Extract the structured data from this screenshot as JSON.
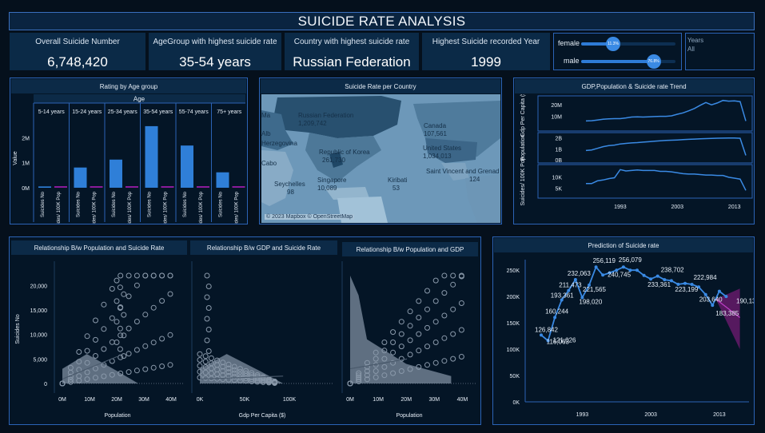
{
  "title": "SUICIDE RATE ANALYSIS",
  "kpis": [
    {
      "label": "Overall Suicide Number",
      "value": "6,748,420"
    },
    {
      "label": "AgeGroup with highest suicide rate",
      "value": "35-54 years"
    },
    {
      "label": "Country with highest suicide rate",
      "value": "Russian Federation"
    },
    {
      "label": "Highest Suicide recorded Year",
      "value": "1999"
    }
  ],
  "gender": {
    "female_label": "female",
    "female_value": "11.3%",
    "male_label": "male",
    "male_value": "76.8%",
    "female_fraction": 0.113,
    "male_fraction": 0.768
  },
  "years_filter": {
    "label": "Years",
    "value": "All"
  },
  "age_chart": {
    "title": "Rating by Age group",
    "header": "Age",
    "ylabel": "Value",
    "yticks": [
      "2M",
      "1M",
      "0M"
    ],
    "groups": [
      "5-14 years",
      "15-24 years",
      "25-34 years",
      "35-54 years",
      "55-74 years",
      "75+ years"
    ],
    "bar_labels": [
      "Suicides No",
      "Suicides/ 100K Pop"
    ],
    "suicides_no": [
      52000,
      808000,
      1124000,
      2460000,
      1686000,
      616000
    ],
    "ymax": 3000000
  },
  "map": {
    "title": "Suicide Rate per Country",
    "labels": [
      {
        "name": "Russian Federation",
        "value": "1,209,742"
      },
      {
        "name": "Canada",
        "value": "107,561"
      },
      {
        "name": "Herzegovina",
        "value": ""
      },
      {
        "name": "Republic of Korea",
        "value": "261,730"
      },
      {
        "name": "United States",
        "value": "1,034,013"
      },
      {
        "name": "Seychelles",
        "value": "98"
      },
      {
        "name": "Singapore",
        "value": "10,089"
      },
      {
        "name": "Kiribati",
        "value": "53"
      },
      {
        "name": "Saint Vincent and Grenad",
        "value": "124"
      },
      {
        "name": "Cabo",
        "value": ""
      },
      {
        "name": "Alb",
        "value": ""
      },
      {
        "name": "Ma",
        "value": ""
      }
    ],
    "attribution": "© 2023 Mapbox © OpenStreetMap"
  },
  "trend": {
    "title": "GDP,Population & Suicide rate Trend",
    "ylabels": [
      "Gdp Per Capita ($)",
      "Population",
      "Suicides/ 100K Pop"
    ],
    "ticks1": [
      "20M",
      "10M"
    ],
    "ticks2": [
      "2B",
      "1B",
      "0B"
    ],
    "ticks3": [
      "10K",
      "5K"
    ],
    "xticks": [
      "1993",
      "2003",
      "2013"
    ]
  },
  "scatter": {
    "titles": [
      "Relationship B/w Population and Suicide Rate",
      "Relationship B/w GDP and Suicide Rate",
      "Relationship B/w Population and GDP"
    ],
    "ylabel": "Suicides No",
    "yticks": [
      "20,000",
      "15,000",
      "10,000",
      "5,000",
      "0"
    ],
    "xticks1": [
      "0M",
      "10M",
      "20M",
      "30M",
      "40M"
    ],
    "xlabel1": "Population",
    "xticks2": [
      "0K",
      "50K",
      "100K"
    ],
    "xlabel2": "Gdp Per Capita ($)",
    "xticks3": [
      "0M",
      "10M",
      "20M",
      "30M",
      "40M"
    ],
    "xlabel3": "Population"
  },
  "prediction": {
    "title": "Prediction of Suicide rate",
    "yticks": [
      "250K",
      "200K",
      "150K",
      "100K",
      "50K",
      "0K"
    ],
    "xticks": [
      "1993",
      "2003",
      "2013"
    ],
    "chart_data": {
      "type": "line",
      "x": [
        1987,
        1988,
        1989,
        1990,
        1991,
        1992,
        1993,
        1994,
        1995,
        1996,
        1997,
        1998,
        1999,
        2000,
        2001,
        2002,
        2003,
        2004,
        2005,
        2006,
        2007,
        2008,
        2009,
        2010,
        2011,
        2012,
        2013,
        2014,
        2015
      ],
      "values": [
        126842,
        116063,
        160244,
        193361,
        211473,
        232063,
        198020,
        221565,
        256119,
        240745,
        245000,
        250000,
        256079,
        250000,
        250000,
        240000,
        233361,
        238702,
        232000,
        230000,
        223199,
        225000,
        222984,
        218000,
        203640,
        183385,
        210000,
        200000,
        190136
      ],
      "labels": {
        "0": "126,842",
        "1": "116,063",
        "2": "160,244",
        "3": "193,361",
        "4": "211,473",
        "5": "232,063",
        "6": "198,020",
        "7": "221,565",
        "8": "256,119",
        "9": "240,745",
        "12": "256,079",
        "16": "233,361",
        "17": "238,702",
        "20": "223,199",
        "22": "222,984",
        "24": "203,640",
        "25": "183,385",
        "28": "190,136"
      },
      "extra_label": "121,026",
      "ylim": [
        0,
        270000
      ]
    }
  }
}
